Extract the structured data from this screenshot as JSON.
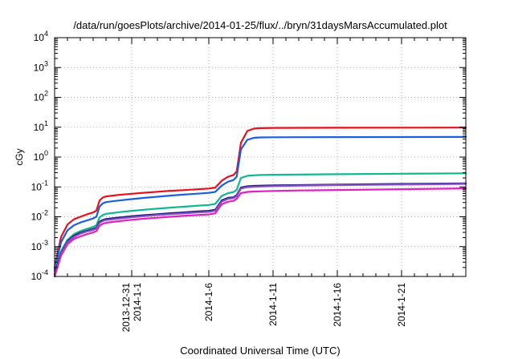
{
  "chart_data": {
    "type": "line",
    "title": "/data/run/goesPlots/archive/2014-01-25/flux/../bryn/31daysMarsAccumulated.plot",
    "xlabel": "Coordinated Universal Time (UTC)",
    "ylabel": "cGy",
    "y_scale": "log",
    "ylim": [
      0.0001,
      10000
    ],
    "y_ticks": [
      {
        "base": "10",
        "exp": "-4"
      },
      {
        "base": "10",
        "exp": "-3"
      },
      {
        "base": "10",
        "exp": "-2"
      },
      {
        "base": "10",
        "exp": "-1"
      },
      {
        "base": "10",
        "exp": "0"
      },
      {
        "base": "10",
        "exp": "1"
      },
      {
        "base": "10",
        "exp": "2"
      },
      {
        "base": "10",
        "exp": "3"
      },
      {
        "base": "10",
        "exp": "4"
      }
    ],
    "xlim": [
      "2013-12-25",
      "2014-01-26"
    ],
    "x_ticks": [
      {
        "date": "2013-12-31",
        "lines": [
          "2013-12-31",
          "2014-1-1"
        ]
      },
      {
        "date": "2014-01-06",
        "lines": [
          "2014-1-6"
        ]
      },
      {
        "date": "2014-01-11",
        "lines": [
          "2014-1-11"
        ]
      },
      {
        "date": "2014-01-16",
        "lines": [
          "2014-1-16"
        ]
      },
      {
        "date": "2014-01-21",
        "lines": [
          "2014-1-21"
        ]
      }
    ],
    "grid": true,
    "x": [
      "2013-12-25 00:00",
      "2013-12-25 12:00",
      "2013-12-26 00:00",
      "2013-12-26 12:00",
      "2013-12-27 00:00",
      "2013-12-27 12:00",
      "2013-12-28 00:00",
      "2013-12-28 06:00",
      "2013-12-28 12:00",
      "2013-12-28 18:00",
      "2013-12-29 00:00",
      "2013-12-30 00:00",
      "2013-12-31 00:00",
      "2014-01-01 00:00",
      "2014-01-02 00:00",
      "2014-01-03 00:00",
      "2014-01-04 00:00",
      "2014-01-05 00:00",
      "2014-01-06 00:00",
      "2014-01-06 12:00",
      "2014-01-07 00:00",
      "2014-01-07 12:00",
      "2014-01-07 22:00",
      "2014-01-08 04:00",
      "2014-01-08 12:00",
      "2014-01-09 00:00",
      "2014-01-09 12:00",
      "2014-01-10 00:00",
      "2014-01-11 00:00",
      "2014-01-13 00:00",
      "2014-01-16 00:00",
      "2014-01-21 00:00",
      "2014-01-26 00:00"
    ],
    "series": [
      {
        "color": "#e8101a",
        "values": [
          0.0002,
          0.0021,
          0.0055,
          0.0082,
          0.01,
          0.012,
          0.014,
          0.016,
          0.035,
          0.044,
          0.048,
          0.054,
          0.059,
          0.064,
          0.069,
          0.074,
          0.078,
          0.083,
          0.088,
          0.095,
          0.16,
          0.22,
          0.25,
          0.33,
          3.0,
          7.5,
          9.0,
          9.3,
          9.5,
          9.55,
          9.6,
          9.65,
          9.7
        ]
      },
      {
        "color": "#1a5fe0",
        "values": [
          0.00018,
          0.0014,
          0.0035,
          0.0052,
          0.0064,
          0.0075,
          0.0088,
          0.01,
          0.022,
          0.028,
          0.031,
          0.035,
          0.039,
          0.043,
          0.047,
          0.051,
          0.055,
          0.059,
          0.063,
          0.068,
          0.11,
          0.15,
          0.17,
          0.22,
          1.8,
          3.8,
          4.4,
          4.55,
          4.6,
          4.62,
          4.65,
          4.68,
          4.72
        ]
      },
      {
        "color": "#10b890",
        "values": [
          0.00015,
          0.0007,
          0.0017,
          0.0026,
          0.0033,
          0.0039,
          0.0046,
          0.0052,
          0.0095,
          0.0115,
          0.0125,
          0.0142,
          0.0158,
          0.0172,
          0.0187,
          0.0202,
          0.0217,
          0.0232,
          0.0248,
          0.027,
          0.05,
          0.062,
          0.067,
          0.08,
          0.2,
          0.235,
          0.245,
          0.25,
          0.255,
          0.26,
          0.267,
          0.276,
          0.285
        ]
      },
      {
        "color": "#1a1a78",
        "values": [
          0.00012,
          0.0006,
          0.0015,
          0.0023,
          0.0029,
          0.0034,
          0.0039,
          0.0043,
          0.0068,
          0.0078,
          0.0084,
          0.0094,
          0.0104,
          0.0113,
          0.0122,
          0.0131,
          0.014,
          0.0149,
          0.0158,
          0.0172,
          0.035,
          0.043,
          0.045,
          0.053,
          0.095,
          0.105,
          0.108,
          0.11,
          0.112,
          0.115,
          0.12,
          0.126,
          0.132
        ]
      },
      {
        "color": "#8a50c8",
        "values": [
          0.0001,
          0.00055,
          0.0014,
          0.0021,
          0.0027,
          0.0032,
          0.0036,
          0.004,
          0.0062,
          0.0072,
          0.0077,
          0.0087,
          0.0096,
          0.0105,
          0.0114,
          0.0122,
          0.013,
          0.0138,
          0.0146,
          0.0158,
          0.032,
          0.04,
          0.042,
          0.049,
          0.088,
          0.098,
          0.101,
          0.103,
          0.106,
          0.11,
          0.115,
          0.12,
          0.126
        ]
      },
      {
        "color": "#e020c0",
        "values": [
          0.0001,
          0.0005,
          0.0012,
          0.0018,
          0.0022,
          0.0026,
          0.003,
          0.0033,
          0.005,
          0.0058,
          0.0063,
          0.0071,
          0.0079,
          0.0086,
          0.0093,
          0.01,
          0.0107,
          0.0113,
          0.012,
          0.013,
          0.026,
          0.032,
          0.034,
          0.04,
          0.062,
          0.068,
          0.07,
          0.071,
          0.073,
          0.076,
          0.079,
          0.084,
          0.089
        ]
      }
    ]
  }
}
